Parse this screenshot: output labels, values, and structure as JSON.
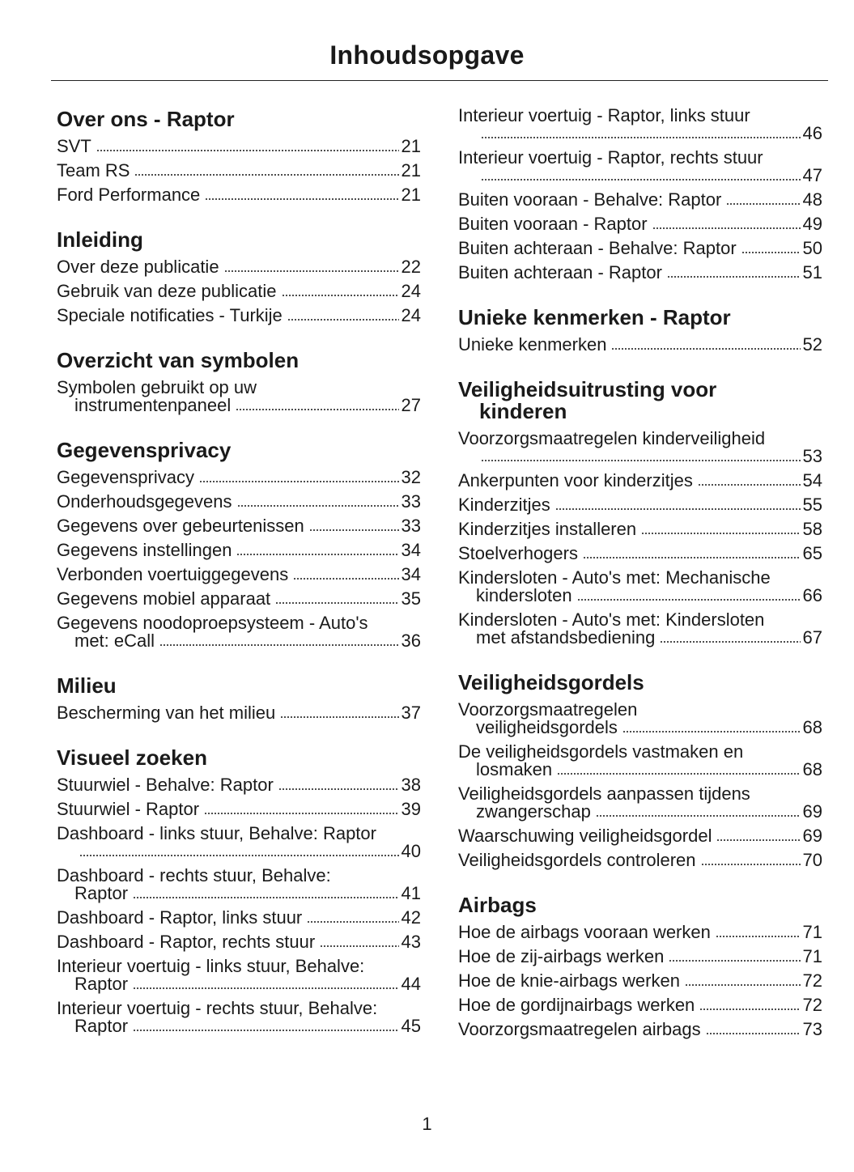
{
  "title": "Inhoudsopgave",
  "page_number": "1",
  "columns": [
    {
      "sections": [
        {
          "heading": "Over ons - Raptor",
          "entries": [
            {
              "lines": [
                "SVT"
              ],
              "page": "21"
            },
            {
              "lines": [
                "Team RS"
              ],
              "page": "21"
            },
            {
              "lines": [
                "Ford Performance"
              ],
              "page": "21"
            }
          ]
        },
        {
          "heading": "Inleiding",
          "entries": [
            {
              "lines": [
                "Over deze publicatie"
              ],
              "page": "22"
            },
            {
              "lines": [
                "Gebruik van deze publicatie"
              ],
              "page": "24"
            },
            {
              "lines": [
                "Speciale notificaties - Turkije"
              ],
              "page": "24"
            }
          ]
        },
        {
          "heading": "Overzicht van symbolen",
          "entries": [
            {
              "lines": [
                "Symbolen gebruikt op uw",
                "instrumentenpaneel"
              ],
              "page": "27"
            }
          ]
        },
        {
          "heading": "Gegevensprivacy",
          "entries": [
            {
              "lines": [
                "Gegevensprivacy"
              ],
              "page": "32"
            },
            {
              "lines": [
                "Onderhoudsgegevens"
              ],
              "page": "33"
            },
            {
              "lines": [
                "Gegevens over gebeurtenissen"
              ],
              "page": "33"
            },
            {
              "lines": [
                "Gegevens instellingen"
              ],
              "page": "34"
            },
            {
              "lines": [
                "Verbonden voertuiggegevens"
              ],
              "page": "34"
            },
            {
              "lines": [
                "Gegevens mobiel apparaat"
              ],
              "page": "35"
            },
            {
              "lines": [
                "Gegevens noodoproepsysteem - Auto's",
                "met: eCall"
              ],
              "page": "36"
            }
          ]
        },
        {
          "heading": "Milieu",
          "entries": [
            {
              "lines": [
                "Bescherming van het milieu"
              ],
              "page": "37"
            }
          ]
        },
        {
          "heading": "Visueel zoeken",
          "entries": [
            {
              "lines": [
                "Stuurwiel - Behalve: Raptor"
              ],
              "page": "38"
            },
            {
              "lines": [
                "Stuurwiel - Raptor"
              ],
              "page": "39"
            },
            {
              "lines": [
                "Dashboard - links stuur, Behalve: Raptor",
                ""
              ],
              "page": "40"
            },
            {
              "lines": [
                "Dashboard - rechts stuur, Behalve:",
                "Raptor"
              ],
              "page": "41"
            },
            {
              "lines": [
                "Dashboard - Raptor, links stuur"
              ],
              "page": "42"
            },
            {
              "lines": [
                "Dashboard - Raptor, rechts stuur"
              ],
              "page": "43"
            },
            {
              "lines": [
                "Interieur voertuig - links stuur, Behalve:",
                "Raptor"
              ],
              "page": "44"
            },
            {
              "lines": [
                "Interieur voertuig - rechts stuur, Behalve:",
                "Raptor"
              ],
              "page": "45"
            }
          ]
        }
      ]
    },
    {
      "sections": [
        {
          "heading": "",
          "entries": [
            {
              "lines": [
                "Interieur voertuig - Raptor, links stuur",
                ""
              ],
              "page": "46"
            },
            {
              "lines": [
                "Interieur voertuig - Raptor, rechts stuur",
                ""
              ],
              "page": "47"
            },
            {
              "lines": [
                "Buiten vooraan - Behalve: Raptor"
              ],
              "page": "48"
            },
            {
              "lines": [
                "Buiten vooraan - Raptor"
              ],
              "page": "49"
            },
            {
              "lines": [
                "Buiten achteraan - Behalve: Raptor"
              ],
              "page": "50"
            },
            {
              "lines": [
                "Buiten achteraan - Raptor"
              ],
              "page": "51"
            }
          ]
        },
        {
          "heading": "Unieke kenmerken - Raptor",
          "entries": [
            {
              "lines": [
                "Unieke kenmerken"
              ],
              "page": "52"
            }
          ]
        },
        {
          "heading": "Veiligheidsuitrusting voor kinderen",
          "entries": [
            {
              "lines": [
                "Voorzorgsmaatregelen kinderveiligheid",
                ""
              ],
              "page": "53"
            },
            {
              "lines": [
                "Ankerpunten voor kinderzitjes"
              ],
              "page": "54"
            },
            {
              "lines": [
                "Kinderzitjes"
              ],
              "page": "55"
            },
            {
              "lines": [
                "Kinderzitjes installeren"
              ],
              "page": "58"
            },
            {
              "lines": [
                "Stoelverhogers"
              ],
              "page": "65"
            },
            {
              "lines": [
                "Kindersloten - Auto's met: Mechanische",
                "kindersloten"
              ],
              "page": "66"
            },
            {
              "lines": [
                "Kindersloten - Auto's met: Kindersloten",
                "met afstandsbediening"
              ],
              "page": "67"
            }
          ]
        },
        {
          "heading": "Veiligheidsgordels",
          "entries": [
            {
              "lines": [
                "Voorzorgsmaatregelen",
                "veiligheidsgordels"
              ],
              "page": "68"
            },
            {
              "lines": [
                "De veiligheidsgordels vastmaken en",
                "losmaken"
              ],
              "page": "68"
            },
            {
              "lines": [
                "Veiligheidsgordels aanpassen tijdens",
                "zwangerschap"
              ],
              "page": "69"
            },
            {
              "lines": [
                "Waarschuwing veiligheidsgordel"
              ],
              "page": "69"
            },
            {
              "lines": [
                "Veiligheidsgordels controleren"
              ],
              "page": "70"
            }
          ]
        },
        {
          "heading": "Airbags",
          "entries": [
            {
              "lines": [
                "Hoe de airbags vooraan werken"
              ],
              "page": "71"
            },
            {
              "lines": [
                "Hoe de zij-airbags werken"
              ],
              "page": "71"
            },
            {
              "lines": [
                "Hoe de knie-airbags werken"
              ],
              "page": "72"
            },
            {
              "lines": [
                "Hoe de gordijnairbags werken"
              ],
              "page": "72"
            },
            {
              "lines": [
                "Voorzorgsmaatregelen airbags"
              ],
              "page": "73"
            }
          ]
        }
      ]
    }
  ]
}
